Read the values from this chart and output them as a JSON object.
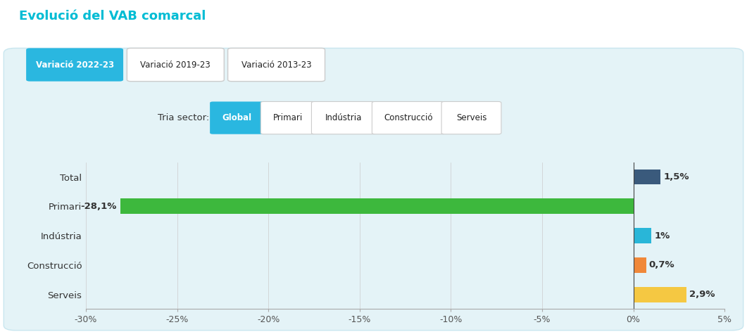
{
  "title": "Evolució del VAB comarcal",
  "title_color": "#00bcd4",
  "background_color": "#ffffff",
  "chart_bg_color": "#e4f3f7",
  "categories": [
    "Total",
    "Primari",
    "Indústria",
    "Construcció",
    "Serveis"
  ],
  "values": [
    1.5,
    -28.1,
    1.0,
    0.7,
    2.9
  ],
  "bar_colors": [
    "#3a5a7c",
    "#3db83d",
    "#29b6d8",
    "#f0883a",
    "#f5c842"
  ],
  "xlim": [
    -30,
    5
  ],
  "xticks": [
    -30,
    -25,
    -20,
    -15,
    -10,
    -5,
    0,
    5
  ],
  "xtick_labels": [
    "-30%",
    "-25%",
    "-20%",
    "-15%",
    "-10%",
    "-5%",
    "0%",
    "5%"
  ],
  "value_labels": [
    "1,5%",
    "-28,1%",
    "1%",
    "0,7%",
    "2,9%"
  ],
  "tab_labels": [
    "Variació 2022-23",
    "Variació 2019-23",
    "Variació 2013-23"
  ],
  "tab_active_color": "#2ab7e0",
  "tab_inactive_color": "#ffffff",
  "tab_active_text_color": "#ffffff",
  "tab_inactive_text_color": "#222222",
  "sector_label": "Tria sector:",
  "sector_buttons": [
    "Global",
    "Primari",
    "Indústria",
    "Construcció",
    "Serveis"
  ],
  "sector_active": "Global",
  "sector_active_color": "#2ab7e0",
  "sector_inactive_color": "#ffffff",
  "sector_active_text_color": "#ffffff",
  "sector_inactive_text_color": "#222222"
}
